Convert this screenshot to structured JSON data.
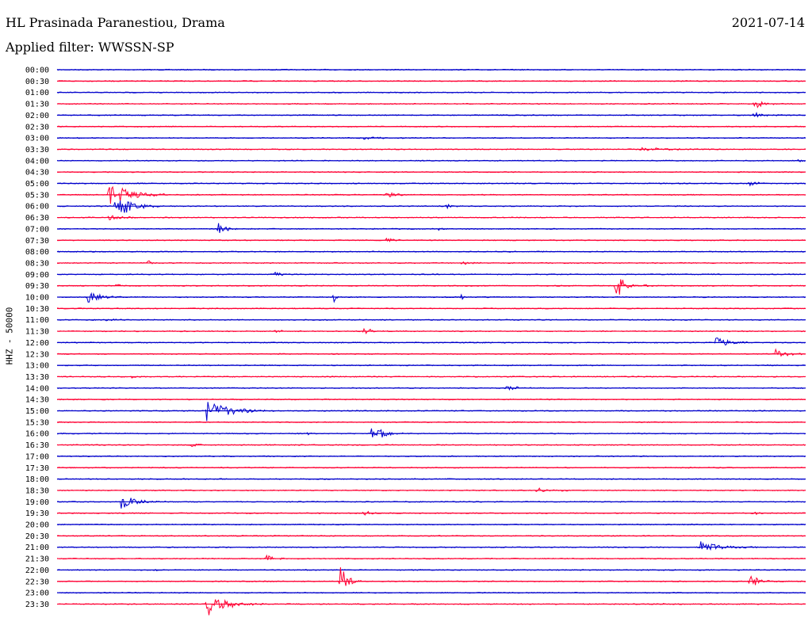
{
  "header": {
    "station": "HL Prasinada Paranestiou, Drama",
    "date": "2021-07-14",
    "filter": "Applied filter: WWSSN-SP"
  },
  "chart_data": {
    "type": "line",
    "ylabel": "HHZ - 50000",
    "colors": {
      "even": "#0000cc",
      "odd": "#ff0033"
    },
    "rows": [
      {
        "time": "00:00",
        "events": []
      },
      {
        "time": "00:30",
        "events": []
      },
      {
        "time": "01:00",
        "events": []
      },
      {
        "time": "01:30",
        "events": [
          {
            "x": 0.931,
            "amp": 10,
            "dur": 0.02
          }
        ]
      },
      {
        "time": "02:00",
        "events": [
          {
            "x": 0.931,
            "amp": 4,
            "dur": 0.03
          }
        ]
      },
      {
        "time": "02:30",
        "events": []
      },
      {
        "time": "03:00",
        "events": [
          {
            "x": 0.41,
            "amp": 2,
            "dur": 0.05
          }
        ]
      },
      {
        "time": "03:30",
        "events": [
          {
            "x": 0.78,
            "amp": 2,
            "dur": 0.08
          }
        ]
      },
      {
        "time": "04:00",
        "events": [
          {
            "x": 0.99,
            "amp": 3,
            "dur": 0.01
          }
        ]
      },
      {
        "time": "04:30",
        "events": []
      },
      {
        "time": "05:00",
        "events": [
          {
            "x": 0.923,
            "amp": 3,
            "dur": 0.03
          }
        ]
      },
      {
        "time": "05:30",
        "events": [
          {
            "x": 0.07,
            "amp": 20,
            "dur": 0.05
          },
          {
            "x": 0.44,
            "amp": 4,
            "dur": 0.03
          }
        ]
      },
      {
        "time": "06:00",
        "events": [
          {
            "x": 0.078,
            "amp": 18,
            "dur": 0.04
          },
          {
            "x": 0.52,
            "amp": 3,
            "dur": 0.02
          }
        ]
      },
      {
        "time": "06:30",
        "events": [
          {
            "x": 0.07,
            "amp": 4,
            "dur": 0.03
          }
        ]
      },
      {
        "time": "07:00",
        "events": [
          {
            "x": 0.215,
            "amp": 9,
            "dur": 0.02
          },
          {
            "x": 0.51,
            "amp": 3,
            "dur": 0.01
          }
        ]
      },
      {
        "time": "07:30",
        "events": [
          {
            "x": 0.44,
            "amp": 3,
            "dur": 0.03
          }
        ]
      },
      {
        "time": "08:00",
        "events": []
      },
      {
        "time": "08:30",
        "events": [
          {
            "x": 0.12,
            "amp": 6,
            "dur": 0.01
          },
          {
            "x": 0.54,
            "amp": 2,
            "dur": 0.04
          }
        ]
      },
      {
        "time": "09:00",
        "events": [
          {
            "x": 0.29,
            "amp": 3,
            "dur": 0.02
          }
        ]
      },
      {
        "time": "09:30",
        "events": [
          {
            "x": 0.745,
            "amp": 24,
            "dur": 0.02
          },
          {
            "x": 0.785,
            "amp": 4,
            "dur": 0.01
          },
          {
            "x": 0.08,
            "amp": 3,
            "dur": 0.01
          }
        ]
      },
      {
        "time": "10:00",
        "events": [
          {
            "x": 0.04,
            "amp": 10,
            "dur": 0.03
          },
          {
            "x": 0.37,
            "amp": 6,
            "dur": 0.005
          },
          {
            "x": 0.54,
            "amp": 6,
            "dur": 0.005
          }
        ]
      },
      {
        "time": "10:30",
        "events": []
      },
      {
        "time": "11:00",
        "events": [
          {
            "x": 0.063,
            "amp": 3,
            "dur": 0.02
          }
        ]
      },
      {
        "time": "11:30",
        "events": [
          {
            "x": 0.29,
            "amp": 2,
            "dur": 0.03
          },
          {
            "x": 0.41,
            "amp": 5,
            "dur": 0.02
          }
        ]
      },
      {
        "time": "12:00",
        "events": [
          {
            "x": 0.88,
            "amp": 7,
            "dur": 0.04
          }
        ]
      },
      {
        "time": "12:30",
        "events": [
          {
            "x": 0.96,
            "amp": 6,
            "dur": 0.03
          }
        ]
      },
      {
        "time": "13:00",
        "events": []
      },
      {
        "time": "13:30",
        "events": [
          {
            "x": 0.1,
            "amp": 2,
            "dur": 0.01
          }
        ]
      },
      {
        "time": "14:00",
        "events": [
          {
            "x": 0.6,
            "amp": 3,
            "dur": 0.04
          }
        ]
      },
      {
        "time": "14:30",
        "events": []
      },
      {
        "time": "15:00",
        "events": [
          {
            "x": 0.2,
            "amp": 14,
            "dur": 0.06
          }
        ]
      },
      {
        "time": "15:30",
        "events": []
      },
      {
        "time": "16:00",
        "events": [
          {
            "x": 0.42,
            "amp": 14,
            "dur": 0.03
          },
          {
            "x": 0.335,
            "amp": 3,
            "dur": 0.005
          }
        ]
      },
      {
        "time": "16:30",
        "events": [
          {
            "x": 0.18,
            "amp": 3,
            "dur": 0.02
          }
        ]
      },
      {
        "time": "17:00",
        "events": []
      },
      {
        "time": "17:30",
        "events": []
      },
      {
        "time": "18:00",
        "events": []
      },
      {
        "time": "18:30",
        "events": [
          {
            "x": 0.64,
            "amp": 3,
            "dur": 0.05
          }
        ]
      },
      {
        "time": "19:00",
        "events": [
          {
            "x": 0.085,
            "amp": 10,
            "dur": 0.04
          }
        ]
      },
      {
        "time": "19:30",
        "events": [
          {
            "x": 0.41,
            "amp": 3,
            "dur": 0.02
          },
          {
            "x": 0.93,
            "amp": 2,
            "dur": 0.02
          }
        ]
      },
      {
        "time": "20:00",
        "events": []
      },
      {
        "time": "20:30",
        "events": []
      },
      {
        "time": "21:00",
        "events": [
          {
            "x": 0.86,
            "amp": 8,
            "dur": 0.05
          }
        ]
      },
      {
        "time": "21:30",
        "events": [
          {
            "x": 0.28,
            "amp": 5,
            "dur": 0.02
          }
        ]
      },
      {
        "time": "22:00",
        "events": [
          {
            "x": 0.13,
            "amp": 2,
            "dur": 0.005
          }
        ]
      },
      {
        "time": "22:30",
        "events": [
          {
            "x": 0.378,
            "amp": 22,
            "dur": 0.02
          },
          {
            "x": 0.925,
            "amp": 9,
            "dur": 0.03
          }
        ]
      },
      {
        "time": "23:00",
        "events": []
      },
      {
        "time": "23:30",
        "events": [
          {
            "x": 0.2,
            "amp": 16,
            "dur": 0.05
          },
          {
            "x": 0.81,
            "amp": 2,
            "dur": 0.005
          }
        ]
      }
    ]
  }
}
